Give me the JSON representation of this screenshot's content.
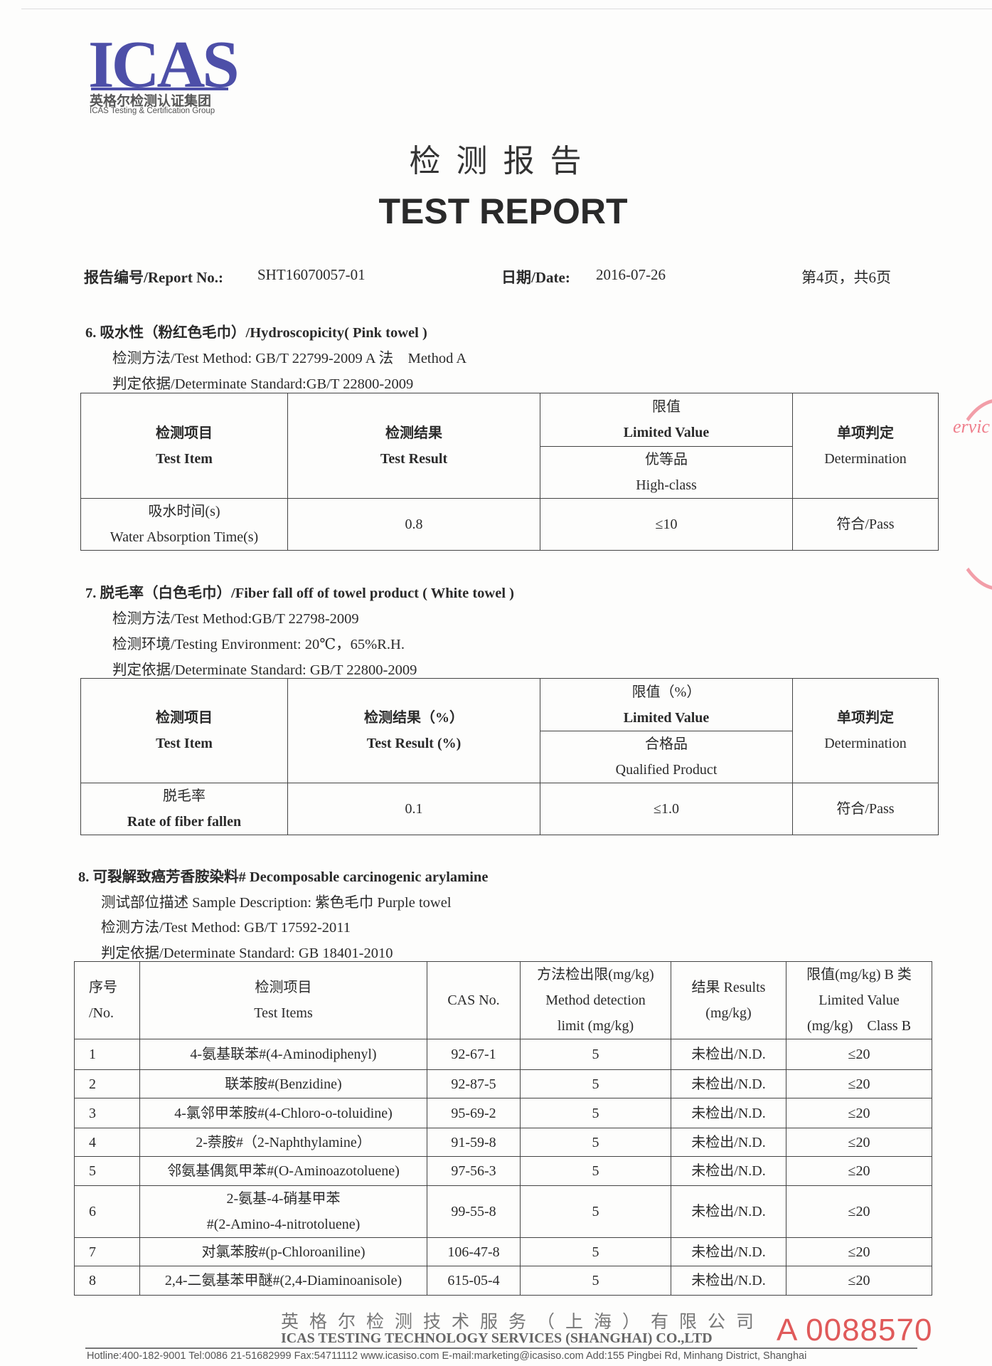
{
  "logo": {
    "mark": "ICAS",
    "cn": "英格尔检测认证集团",
    "en": "ICAS Testing & Certification Group",
    "color": "#4d4fa8"
  },
  "title": {
    "cn": "检测报告",
    "en": "TEST REPORT"
  },
  "meta": {
    "report_no_label": "报告编号/Report No.:",
    "report_no": "SHT16070057-01",
    "date_label": "日期/Date:",
    "date": "2016-07-26",
    "page": "第4页，共6页"
  },
  "section6": {
    "heading": "6. 吸水性（粉红色毛巾）/Hydroscopicity( Pink towel )",
    "method": "检测方法/Test Method: GB/T 22799-2009 A 法　Method A",
    "standard": "判定依据/Determinate Standard:GB/T 22800-2009",
    "headers": {
      "item_cn": "检测项目",
      "item_en": "Test Item",
      "result_cn": "检测结果",
      "result_en": "Test Result",
      "limit_cn": "限值",
      "limit_en": "Limited Value",
      "grade_cn": "优等品",
      "grade_en": "High-class",
      "det_cn": "单项判定",
      "det_en": "Determination"
    },
    "row": {
      "item_cn": "吸水时间(s)",
      "item_en": "Water Absorption Time(s)",
      "result": "0.8",
      "limit": "≤10",
      "det": "符合/Pass"
    }
  },
  "section7": {
    "heading": "7. 脱毛率（白色毛巾）/Fiber fall off of towel product ( White towel )",
    "method": "检测方法/Test Method:GB/T 22798-2009",
    "environment": "检测环境/Testing Environment:  20℃，65%R.H.",
    "standard": "判定依据/Determinate Standard: GB/T 22800-2009",
    "headers": {
      "item_cn": "检测项目",
      "item_en": "Test Item",
      "result_cn": "检测结果（%）",
      "result_en": "Test Result (%)",
      "limit_cn": "限值（%）",
      "limit_en": "Limited Value",
      "grade_cn": "合格品",
      "grade_en": "Qualified Product",
      "det_cn": "单项判定",
      "det_en": "Determination"
    },
    "row": {
      "item_cn": "脱毛率",
      "item_en": "Rate of fiber fallen",
      "result": "0.1",
      "limit": "≤1.0",
      "det": "符合/Pass"
    }
  },
  "section8": {
    "heading": "8. 可裂解致癌芳香胺染料# Decomposable carcinogenic arylamine",
    "sample": "测试部位描述  Sample Description:  紫色毛巾  Purple towel",
    "method": "检测方法/Test Method: GB/T 17592-2011",
    "standard": "判定依据/Determinate Standard: GB 18401-2010",
    "headers": {
      "no_cn": "序号",
      "no_en": "/No.",
      "item_cn": "检测项目",
      "item_en": "Test Items",
      "cas": "CAS No.",
      "mdl_cn": "方法检出限(mg/kg)",
      "mdl_en1": "Method detection",
      "mdl_en2": "limit (mg/kg)",
      "res_cn": "结果 Results",
      "res_en": "(mg/kg)",
      "lim_cn": "限值(mg/kg) B 类",
      "lim_en1": "Limited Value",
      "lim_en2": "(mg/kg)　Class B"
    },
    "rows": [
      {
        "no": "1",
        "item": "4-氨基联苯#(4-Aminodiphenyl)",
        "cas": "92-67-1",
        "mdl": "5",
        "result": "未检出/N.D.",
        "limit": "≤20"
      },
      {
        "no": "2",
        "item": "联苯胺#(Benzidine)",
        "cas": "92-87-5",
        "mdl": "5",
        "result": "未检出/N.D.",
        "limit": "≤20"
      },
      {
        "no": "3",
        "item": "4-氯邻甲苯胺#(4-Chloro-o-toluidine)",
        "cas": "95-69-2",
        "mdl": "5",
        "result": "未检出/N.D.",
        "limit": "≤20"
      },
      {
        "no": "4",
        "item": "2-萘胺#（2-Naphthylamine）",
        "cas": "91-59-8",
        "mdl": "5",
        "result": "未检出/N.D.",
        "limit": "≤20"
      },
      {
        "no": "5",
        "item": "邻氨基偶氮甲苯#(O-Aminoazotoluene)",
        "cas": "97-56-3",
        "mdl": "5",
        "result": "未检出/N.D.",
        "limit": "≤20"
      },
      {
        "no": "6",
        "item": "2-氨基-4-硝基甲苯",
        "item2": "#(2-Amino-4-nitrotoluene)",
        "cas": "99-55-8",
        "mdl": "5",
        "result": "未检出/N.D.",
        "limit": "≤20"
      },
      {
        "no": "7",
        "item": "对氯苯胺#(p-Chloroaniline)",
        "cas": "106-47-8",
        "mdl": "5",
        "result": "未检出/N.D.",
        "limit": "≤20"
      },
      {
        "no": "8",
        "item": "2,4-二氨基苯甲醚#(2,4-Diaminoanisole)",
        "cas": "615-05-4",
        "mdl": "5",
        "result": "未检出/N.D.",
        "limit": "≤20"
      }
    ]
  },
  "footer": {
    "company_cn": "英格尔检测技术服务（上海）有限公司",
    "company_en": "ICAS TESTING TECHNOLOGY SERVICES (SHANGHAI) CO.,LTD",
    "contact": "Hotline:400-182-9001   Tel:0086 21-51682999   Fax:54711112  www.icasiso.com   E-mail:marketing@icasiso.com   Add:155 Pingbei Rd, Minhang District, Shanghai",
    "serial": "A 0088570",
    "serial_color": "#e05a5a"
  },
  "stamp": {
    "text": "ervic",
    "color": "#ef7f8c"
  }
}
